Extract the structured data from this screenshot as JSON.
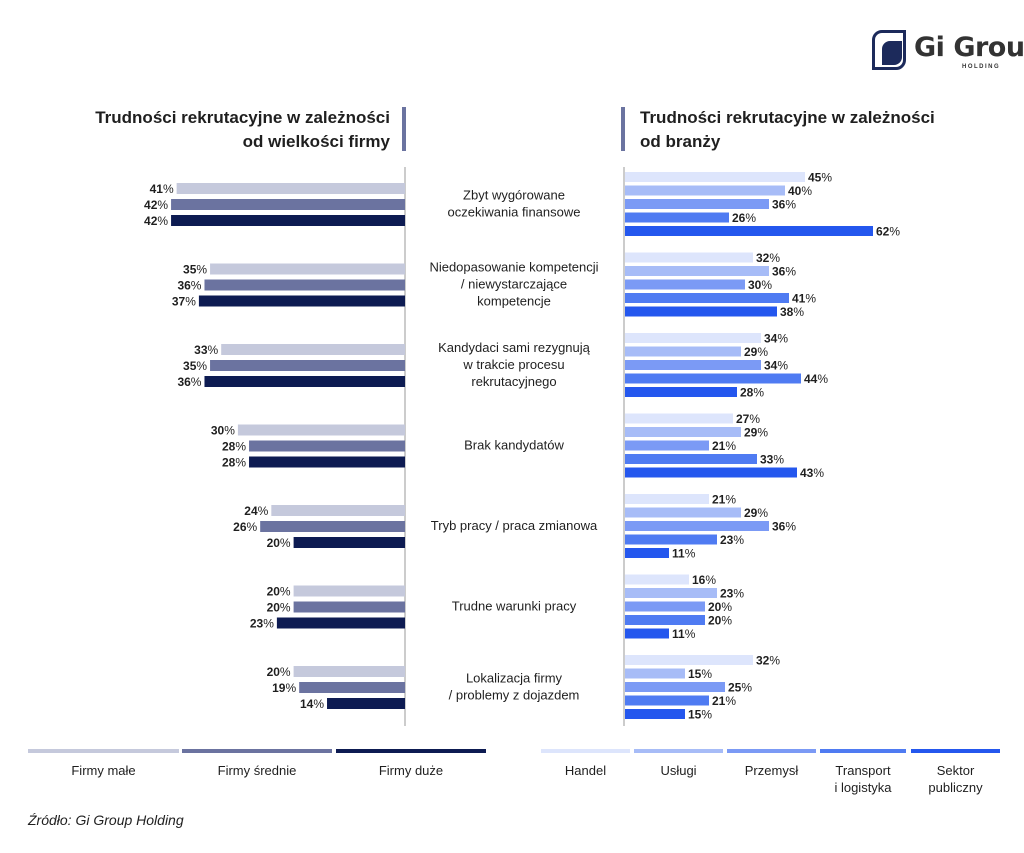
{
  "brand": {
    "logo_text": "Gi Group",
    "logo_subtext": "HOLDING"
  },
  "titles": {
    "left_line1": "Trudności rekrutacyjne w zależności",
    "left_line2": "od wielkości firmy",
    "right_line1": "Trudności rekrutacyjne w zależności",
    "right_line2": "od branży"
  },
  "source": "Źródło: Gi Group Holding",
  "colors": {
    "firmy_male": "#c5c9dc",
    "firmy_srednie": "#6b73a0",
    "firmy_duze": "#0d1b52",
    "handel": "#dde5fc",
    "uslugi": "#a7bcf7",
    "przemysl": "#7b9af5",
    "transport": "#4f7bf2",
    "sektor": "#2457ee",
    "axis": "#9a9a9a"
  },
  "chart_data": [
    {
      "type": "bar",
      "orientation": "horizontal",
      "title": "Trudności rekrutacyjne w zależności od wielkości firmy",
      "unit": "%",
      "categories": [
        "Zbyt wygórowane oczekiwania finansowe",
        "Niedopasowanie kompetencji / niewystarczające kompetencje",
        "Kandydaci sami rezygnują w trakcie procesu rekrutacyjnego",
        "Brak kandydatów",
        "Tryb pracy / praca zmianowa",
        "Trudne warunki pracy",
        "Lokalizacja firmy / problemy z dojazdem"
      ],
      "series": [
        {
          "name": "Firmy małe",
          "values": [
            41,
            35,
            33,
            30,
            24,
            20,
            20
          ]
        },
        {
          "name": "Firmy średnie",
          "values": [
            42,
            36,
            35,
            28,
            26,
            20,
            19
          ]
        },
        {
          "name": "Firmy duże",
          "values": [
            42,
            37,
            36,
            28,
            20,
            23,
            14
          ]
        }
      ],
      "legend": "bottom"
    },
    {
      "type": "bar",
      "orientation": "horizontal",
      "title": "Trudności rekrutacyjne w zależności od branży",
      "unit": "%",
      "categories": [
        "Zbyt wygórowane oczekiwania finansowe",
        "Niedopasowanie kompetencji / niewystarczające kompetencje",
        "Kandydaci sami rezygnują w trakcie procesu rekrutacyjnego",
        "Brak kandydatów",
        "Tryb pracy / praca zmianowa",
        "Trudne warunki pracy",
        "Lokalizacja firmy / problemy z dojazdem"
      ],
      "series": [
        {
          "name": "Handel",
          "values": [
            45,
            32,
            34,
            27,
            21,
            16,
            32
          ]
        },
        {
          "name": "Usługi",
          "values": [
            40,
            36,
            29,
            29,
            29,
            23,
            15
          ]
        },
        {
          "name": "Przemysł",
          "values": [
            36,
            30,
            34,
            21,
            36,
            20,
            25
          ]
        },
        {
          "name": "Transport i logistyka",
          "values": [
            26,
            41,
            44,
            33,
            23,
            20,
            21
          ]
        },
        {
          "name": "Sektor publiczny",
          "values": [
            62,
            38,
            28,
            43,
            11,
            11,
            15
          ]
        }
      ],
      "legend": "bottom"
    }
  ],
  "category_lines": [
    [
      "Zbyt wygórowane",
      "oczekiwania finansowe"
    ],
    [
      "Niedopasowanie kompetencji",
      "/ niewystarczające",
      "kompetencje"
    ],
    [
      "Kandydaci sami rezygnują",
      "w trakcie procesu",
      "rekrutacyjnego"
    ],
    [
      "Brak kandydatów"
    ],
    [
      "Tryb pracy / praca zmianowa"
    ],
    [
      "Trudne warunki pracy"
    ],
    [
      "Lokalizacja firmy",
      "/ problemy z dojazdem"
    ]
  ],
  "legend_left": [
    {
      "lines": [
        "Firmy małe"
      ]
    },
    {
      "lines": [
        "Firmy średnie"
      ]
    },
    {
      "lines": [
        "Firmy duże"
      ]
    }
  ],
  "legend_right": [
    {
      "lines": [
        "Handel"
      ]
    },
    {
      "lines": [
        "Usługi"
      ]
    },
    {
      "lines": [
        "Przemysł"
      ]
    },
    {
      "lines": [
        "Transport",
        "i logistyka"
      ]
    },
    {
      "lines": [
        "Sektor",
        "publiczny"
      ]
    }
  ]
}
